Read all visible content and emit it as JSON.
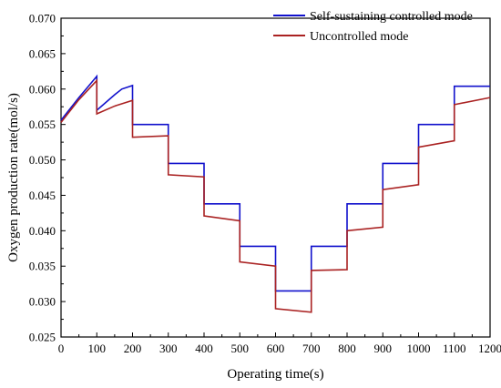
{
  "chart_data": {
    "type": "line",
    "title": "",
    "xlabel": "Operating time(s)",
    "ylabel": "Oxygen production rate(mol/s)",
    "xlim": [
      0,
      1200
    ],
    "ylim": [
      0.025,
      0.07
    ],
    "x_ticks": [
      "0",
      "100",
      "200",
      "300",
      "400",
      "500",
      "600",
      "700",
      "800",
      "900",
      "1000",
      "1100",
      "1200"
    ],
    "y_ticks": [
      "0.025",
      "0.030",
      "0.035",
      "0.040",
      "0.045",
      "0.050",
      "0.055",
      "0.060",
      "0.065",
      "0.070"
    ],
    "grid": false,
    "legend_position": "top-right",
    "series": [
      {
        "name": "Self-sustaining controlled mode",
        "color": "#1111cc",
        "points": [
          [
            0,
            0.0556
          ],
          [
            50,
            0.0588
          ],
          [
            100,
            0.0618
          ],
          [
            100,
            0.057
          ],
          [
            150,
            0.0592
          ],
          [
            170,
            0.06
          ],
          [
            200,
            0.0605
          ],
          [
            200,
            0.055
          ],
          [
            300,
            0.055
          ],
          [
            300,
            0.0495
          ],
          [
            400,
            0.0495
          ],
          [
            400,
            0.0438
          ],
          [
            500,
            0.0438
          ],
          [
            500,
            0.0378
          ],
          [
            600,
            0.0378
          ],
          [
            600,
            0.0315
          ],
          [
            700,
            0.0315
          ],
          [
            700,
            0.0378
          ],
          [
            800,
            0.0378
          ],
          [
            800,
            0.0438
          ],
          [
            900,
            0.0438
          ],
          [
            900,
            0.0495
          ],
          [
            1000,
            0.0495
          ],
          [
            1000,
            0.055
          ],
          [
            1100,
            0.055
          ],
          [
            1100,
            0.0604
          ],
          [
            1200,
            0.0604
          ]
        ]
      },
      {
        "name": "Uncontrolled mode",
        "color": "#aa2222",
        "points": [
          [
            0,
            0.0553
          ],
          [
            50,
            0.0585
          ],
          [
            100,
            0.0612
          ],
          [
            100,
            0.0565
          ],
          [
            150,
            0.0576
          ],
          [
            200,
            0.0584
          ],
          [
            200,
            0.0532
          ],
          [
            300,
            0.0534
          ],
          [
            300,
            0.0479
          ],
          [
            400,
            0.0476
          ],
          [
            400,
            0.0421
          ],
          [
            500,
            0.0414
          ],
          [
            500,
            0.0356
          ],
          [
            600,
            0.035
          ],
          [
            600,
            0.029
          ],
          [
            700,
            0.0285
          ],
          [
            700,
            0.0344
          ],
          [
            800,
            0.0345
          ],
          [
            800,
            0.04
          ],
          [
            900,
            0.0405
          ],
          [
            900,
            0.0458
          ],
          [
            1000,
            0.0465
          ],
          [
            1000,
            0.0518
          ],
          [
            1100,
            0.0527
          ],
          [
            1100,
            0.0578
          ],
          [
            1200,
            0.0588
          ]
        ]
      }
    ]
  }
}
